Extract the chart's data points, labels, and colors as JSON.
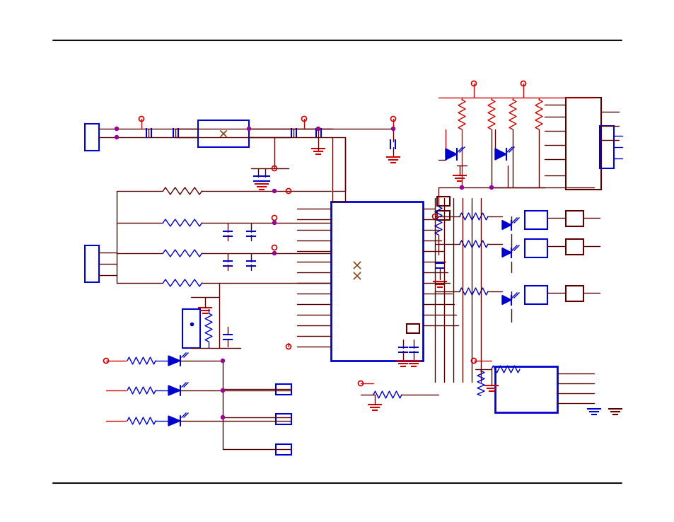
{
  "background_color": "#ffffff",
  "fig_width": 9.54,
  "fig_height": 7.38,
  "dpi": 100,
  "RED": "#cc0000",
  "BLUE": "#0000cc",
  "DARK": "#5a0000",
  "BLK": "#111111"
}
